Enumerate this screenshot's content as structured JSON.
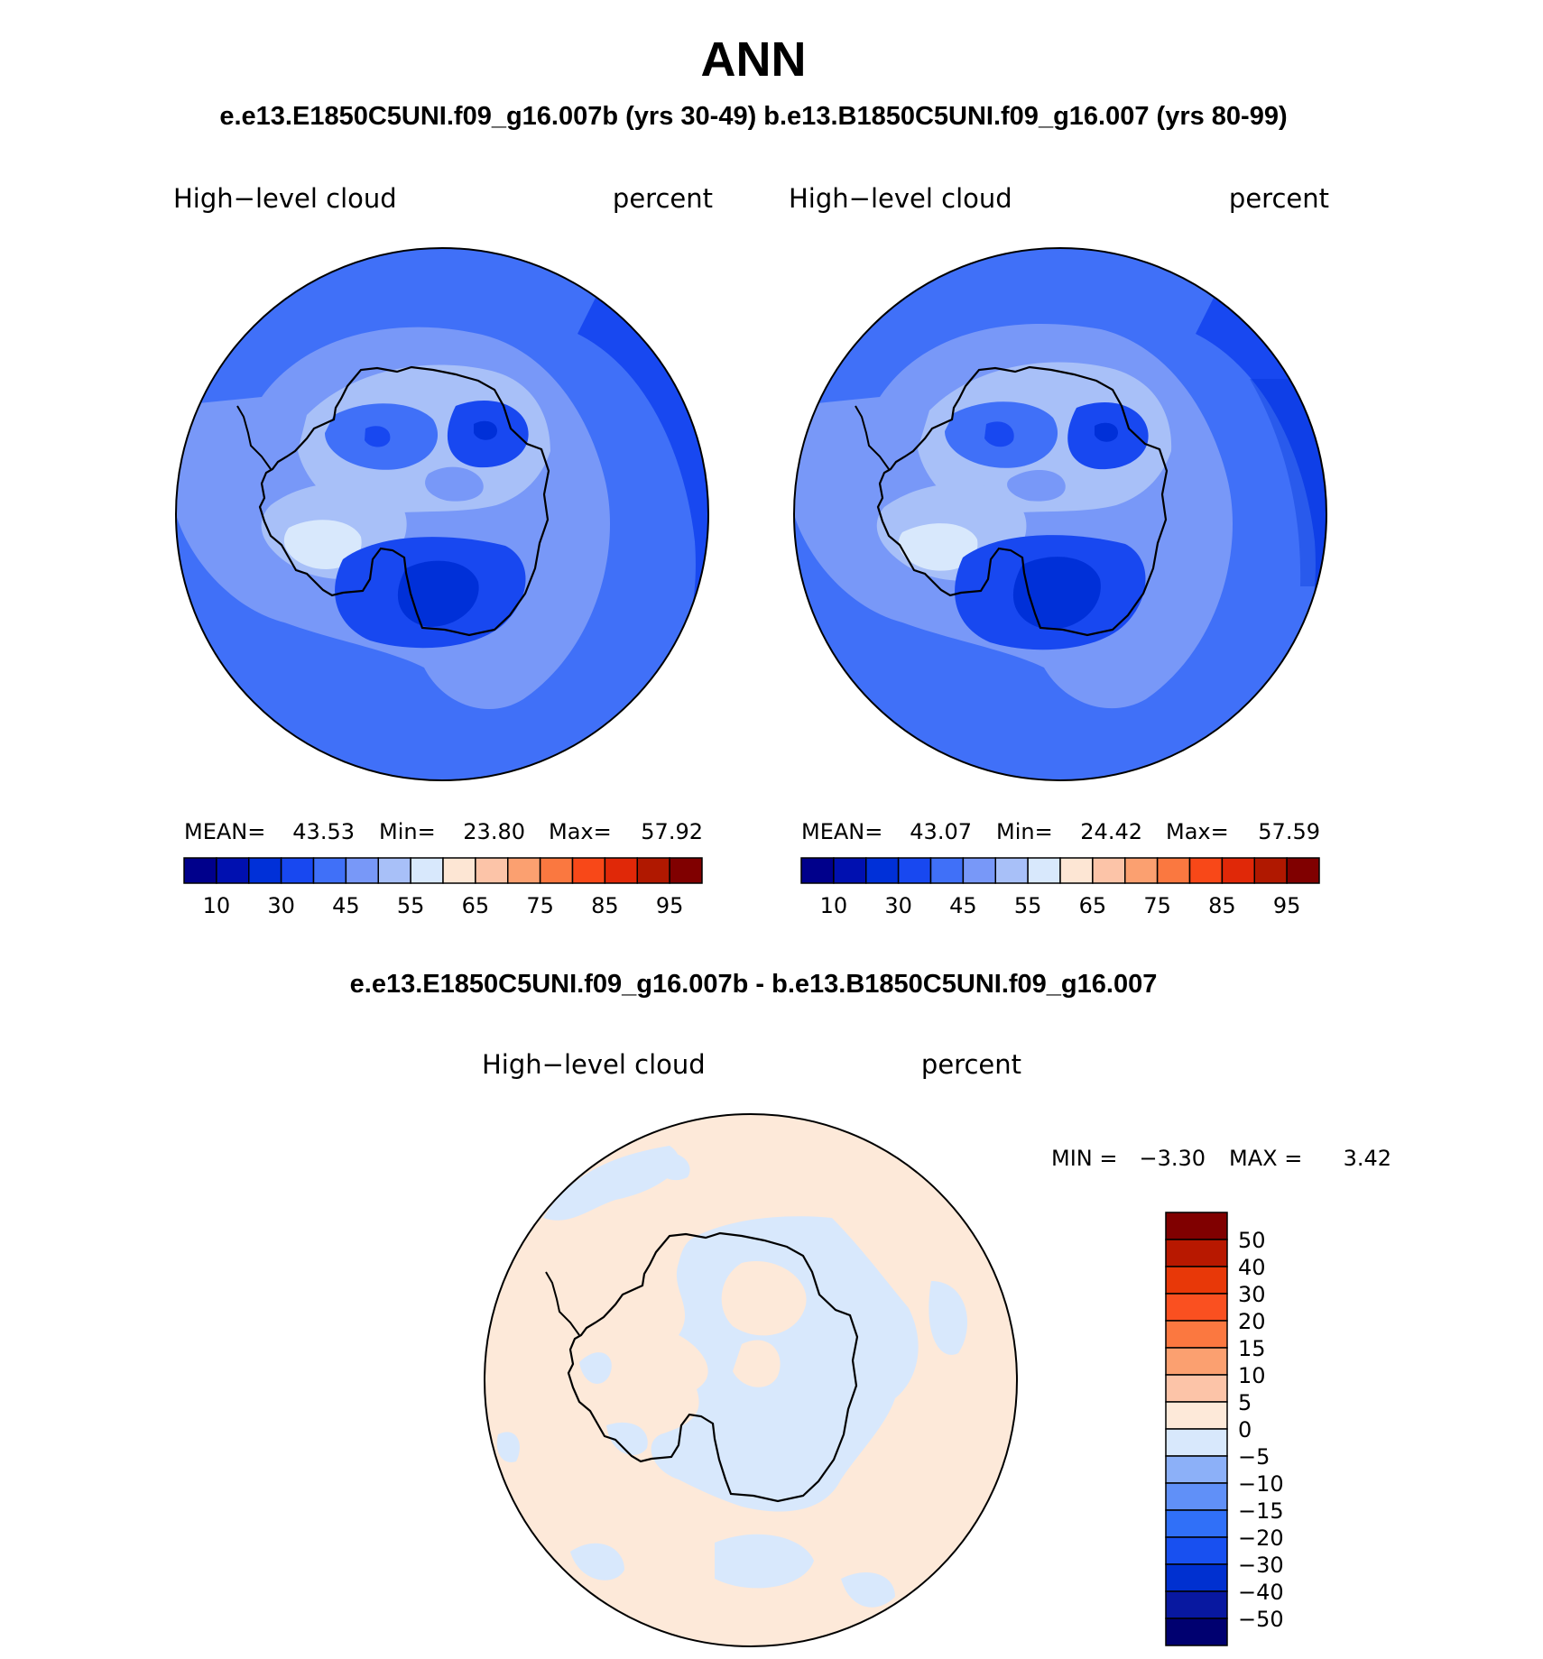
{
  "title": "ANN",
  "subtitle": "e.e13.E1850C5UNI.f09_g16.007b (yrs 30-49)  b.e13.B1850C5UNI.f09_g16.007 (yrs 80-99)",
  "diff_title": "e.e13.E1850C5UNI.f09_g16.007b - b.e13.B1850C5UNI.f09_g16.007",
  "colors": {
    "abs_scale": [
      "#00008b",
      "#0010b0",
      "#0030d8",
      "#1848f0",
      "#4070f8",
      "#7898f8",
      "#a8c0f8",
      "#d8e8fc",
      "#fde6d4",
      "#fcc4a8",
      "#fba070",
      "#fa7840",
      "#f84818",
      "#e02808",
      "#b01800",
      "#800000"
    ],
    "diff_scale": [
      "#000070",
      "#0818a0",
      "#0030d0",
      "#1850f0",
      "#3070f8",
      "#6090f8",
      "#8cb0f8",
      "#d8e8fc",
      "#fde9d9",
      "#fcc4a8",
      "#fba070",
      "#fb7840",
      "#fa5020",
      "#e83808",
      "#b81800",
      "#800000"
    ]
  },
  "panels": [
    {
      "label_left": "High−level cloud",
      "label_right": "percent",
      "stats": {
        "mean_label": "MEAN=",
        "mean": "43.53",
        "min_label": "Min=",
        "min": "23.80",
        "max_label": "Max=",
        "max": "57.92"
      },
      "ticks": [
        "10",
        "30",
        "45",
        "55",
        "65",
        "75",
        "85",
        "95"
      ]
    },
    {
      "label_left": "High−level cloud",
      "label_right": "percent",
      "stats": {
        "mean_label": "MEAN=",
        "mean": "43.07",
        "min_label": "Min=",
        "min": "24.42",
        "max_label": "Max=",
        "max": "57.59"
      },
      "ticks": [
        "10",
        "30",
        "45",
        "55",
        "65",
        "75",
        "85",
        "95"
      ]
    }
  ],
  "diff_panel": {
    "label_left": "High−level cloud",
    "label_right": "percent",
    "min_label": "MIN =",
    "min": "−3.30",
    "max_label": "MAX =",
    "max": "3.42",
    "ticks": [
      "50",
      "40",
      "30",
      "20",
      "15",
      "10",
      "5",
      "0",
      "−5",
      "−10",
      "−15",
      "−20",
      "−30",
      "−40",
      "−50"
    ]
  }
}
